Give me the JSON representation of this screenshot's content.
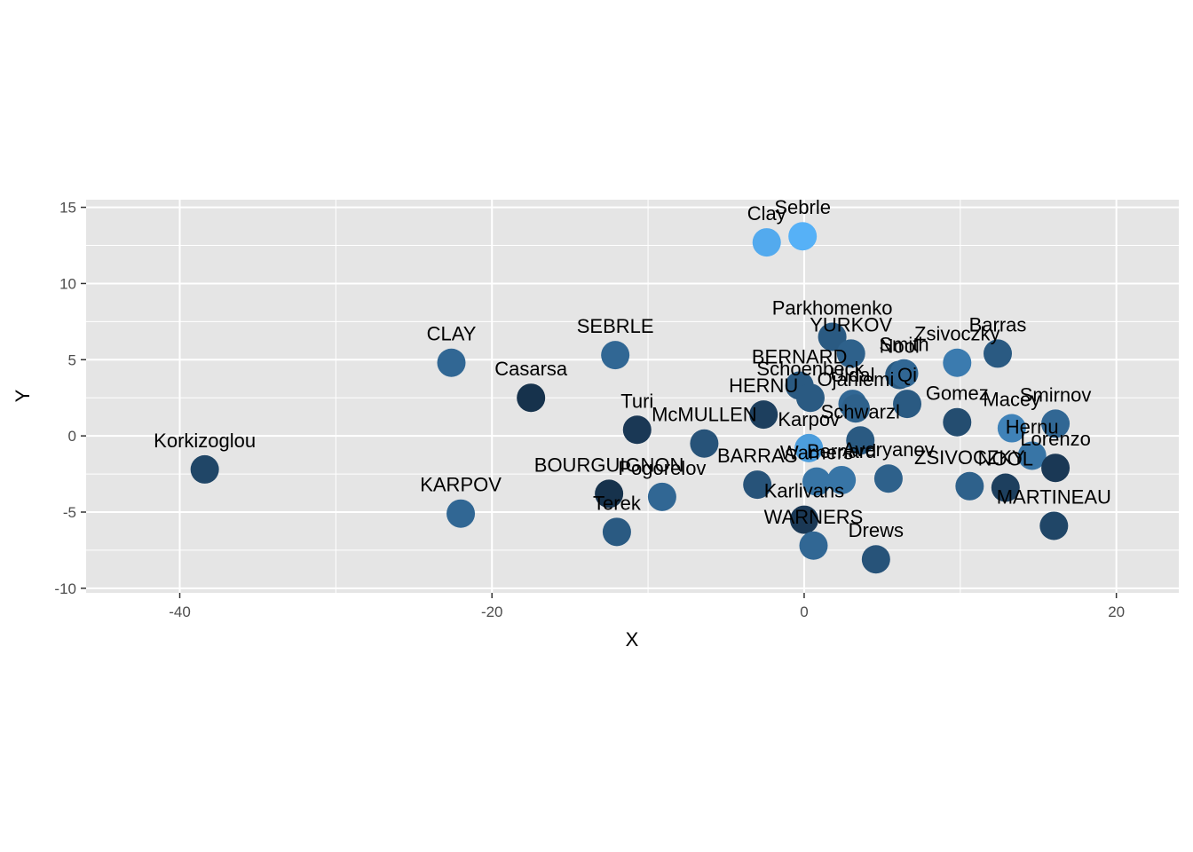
{
  "chart_data": {
    "type": "scatter",
    "title": "",
    "xlabel": "X",
    "ylabel": "Y",
    "xlim": [
      -46,
      24
    ],
    "ylim": [
      -10.3,
      15.5
    ],
    "xticks": [
      -40,
      -20,
      0,
      20
    ],
    "yticks": [
      -10,
      -5,
      0,
      5,
      10,
      15
    ],
    "xtick_labels": [
      "-40",
      "-20",
      "0",
      "20"
    ],
    "ytick_labels": [
      "-10",
      "-5",
      "0",
      "5",
      "10",
      "15"
    ],
    "grid": true,
    "legend": "none",
    "colors": {
      "panel_background": "#e5e5e5",
      "grid": "#ffffff",
      "point_dark": "#132b43",
      "point_light": "#56b1f7"
    },
    "points": [
      {
        "label": "Sebrle",
        "x": -0.1,
        "y": 13.1,
        "shade": 1.0
      },
      {
        "label": "Clay",
        "x": -2.4,
        "y": 12.7,
        "shade": 0.95
      },
      {
        "label": "CLAY",
        "x": -22.6,
        "y": 4.8,
        "shade": 0.45
      },
      {
        "label": "SEBRLE",
        "x": -12.1,
        "y": 5.3,
        "shade": 0.45
      },
      {
        "label": "Casarsa",
        "x": -17.5,
        "y": 2.5,
        "shade": 0.05
      },
      {
        "label": "Korkizoglou",
        "x": -38.4,
        "y": -2.2,
        "shade": 0.2
      },
      {
        "label": "KARPOV",
        "x": -22.0,
        "y": -5.1,
        "shade": 0.45
      },
      {
        "label": "Turi",
        "x": -10.7,
        "y": 0.4,
        "shade": 0.1
      },
      {
        "label": "McMULLEN",
        "x": -6.4,
        "y": -0.5,
        "shade": 0.3
      },
      {
        "label": "BOURGUIGNON",
        "x": -12.5,
        "y": -3.8,
        "shade": 0.05
      },
      {
        "label": "Pogorelov",
        "x": -9.1,
        "y": -4.0,
        "shade": 0.45
      },
      {
        "label": "Terek",
        "x": -12.0,
        "y": -6.3,
        "shade": 0.35
      },
      {
        "label": "HERNU",
        "x": -2.6,
        "y": 1.4,
        "shade": 0.15
      },
      {
        "label": "Karpov",
        "x": 0.3,
        "y": -0.8,
        "shade": 0.85
      },
      {
        "label": "BARRAS",
        "x": -3.0,
        "y": -3.2,
        "shade": 0.3
      },
      {
        "label": "Warners",
        "x": 0.8,
        "y": -3.0,
        "shade": 0.55
      },
      {
        "label": "Bernard",
        "x": 2.4,
        "y": -2.9,
        "shade": 0.55
      },
      {
        "label": "Schwarzl",
        "x": 3.6,
        "y": -0.3,
        "shade": 0.35
      },
      {
        "label": "Karlivans",
        "x": 0.0,
        "y": -5.5,
        "shade": 0.1
      },
      {
        "label": "WARNERS",
        "x": 0.6,
        "y": -7.2,
        "shade": 0.45
      },
      {
        "label": "Drews",
        "x": 4.6,
        "y": -8.1,
        "shade": 0.3
      },
      {
        "label": "Averyanov",
        "x": 5.4,
        "y": -2.8,
        "shade": 0.4
      },
      {
        "label": "Parkhomenko",
        "x": 1.8,
        "y": 6.5,
        "shade": 0.35
      },
      {
        "label": "YURKOV",
        "x": 3.0,
        "y": 5.4,
        "shade": 0.4
      },
      {
        "label": "BERNARD",
        "x": -0.3,
        "y": 3.3,
        "shade": 0.35
      },
      {
        "label": "Schoenbeck",
        "x": 0.4,
        "y": 2.5,
        "shade": 0.35
      },
      {
        "label": "Uldal",
        "x": 3.1,
        "y": 2.1,
        "shade": 0.45
      },
      {
        "label": "Nool",
        "x": 6.1,
        "y": 4.0,
        "shade": 0.35
      },
      {
        "label": "Smith",
        "x": 6.4,
        "y": 4.1,
        "shade": 0.45
      },
      {
        "label": "Qi",
        "x": 6.6,
        "y": 2.1,
        "shade": 0.35
      },
      {
        "label": "Ojaniemi",
        "x": 3.3,
        "y": 1.8,
        "shade": 0.4
      },
      {
        "label": "Zsivoczky",
        "x": 9.8,
        "y": 4.8,
        "shade": 0.6
      },
      {
        "label": "Barras",
        "x": 12.4,
        "y": 5.4,
        "shade": 0.35
      },
      {
        "label": "Gomez",
        "x": 9.8,
        "y": 0.9,
        "shade": 0.25
      },
      {
        "label": "Macey",
        "x": 13.3,
        "y": 0.5,
        "shade": 0.65
      },
      {
        "label": "Smirnov",
        "x": 16.1,
        "y": 0.8,
        "shade": 0.45
      },
      {
        "label": "Hernu",
        "x": 14.6,
        "y": -1.3,
        "shade": 0.55
      },
      {
        "label": "Lorenzo",
        "x": 16.1,
        "y": -2.1,
        "shade": 0.1
      },
      {
        "label": "ZSIVOCZKY",
        "x": 10.6,
        "y": -3.3,
        "shade": 0.4
      },
      {
        "label": "NOOL",
        "x": 12.9,
        "y": -3.4,
        "shade": 0.15
      },
      {
        "label": "MARTINEAU",
        "x": 16.0,
        "y": -5.9,
        "shade": 0.2
      }
    ]
  }
}
